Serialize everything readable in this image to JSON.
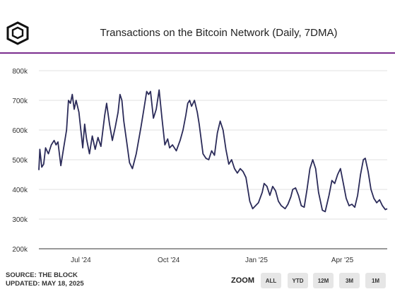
{
  "logo": {
    "icon": "the-block-cube-icon"
  },
  "title": "Transactions on the Bitcoin Network (Daily, 7DMA)",
  "footer": {
    "source": "SOURCE: THE BLOCK",
    "updated": "UPDATED: MAY 18, 2025"
  },
  "zoom": {
    "label": "ZOOM",
    "buttons": [
      "ALL",
      "YTD",
      "12M",
      "3M",
      "1M"
    ]
  },
  "colors": {
    "line": "#2b2b59",
    "accent": "#7b2d8e",
    "button_bg": "#e6e6e6"
  },
  "chart_data": {
    "type": "line",
    "title": "Transactions on the Bitcoin Network (Daily, 7DMA)",
    "xlabel": "",
    "ylabel": "",
    "x_range": [
      "2024-05-18",
      "2025-05-18"
    ],
    "ylim": [
      200000,
      800000
    ],
    "y_ticks": [
      200000,
      300000,
      400000,
      500000,
      600000,
      700000,
      800000
    ],
    "y_tick_labels": [
      "200k",
      "300k",
      "400k",
      "500k",
      "600k",
      "700k",
      "800k"
    ],
    "x_ticks": [
      "2024-07-01",
      "2024-10-01",
      "2025-01-01",
      "2025-04-01"
    ],
    "x_tick_labels": [
      "Jul '24",
      "Oct '24",
      "Jan '25",
      "Apr '25"
    ],
    "grid": "horizontal",
    "legend": "none",
    "series": [
      {
        "name": "",
        "color": "#2b2b59",
        "points": [
          [
            "2024-05-18",
            465000
          ],
          [
            "2024-05-19",
            535000
          ],
          [
            "2024-05-21",
            475000
          ],
          [
            "2024-05-23",
            485000
          ],
          [
            "2024-05-25",
            540000
          ],
          [
            "2024-05-28",
            520000
          ],
          [
            "2024-05-31",
            550000
          ],
          [
            "2024-06-03",
            565000
          ],
          [
            "2024-06-05",
            550000
          ],
          [
            "2024-06-07",
            560000
          ],
          [
            "2024-06-10",
            480000
          ],
          [
            "2024-06-13",
            540000
          ],
          [
            "2024-06-16",
            600000
          ],
          [
            "2024-06-18",
            700000
          ],
          [
            "2024-06-20",
            690000
          ],
          [
            "2024-06-22",
            720000
          ],
          [
            "2024-06-24",
            670000
          ],
          [
            "2024-06-26",
            700000
          ],
          [
            "2024-06-29",
            660000
          ],
          [
            "2024-07-01",
            600000
          ],
          [
            "2024-07-03",
            540000
          ],
          [
            "2024-07-05",
            620000
          ],
          [
            "2024-07-07",
            570000
          ],
          [
            "2024-07-10",
            520000
          ],
          [
            "2024-07-13",
            580000
          ],
          [
            "2024-07-16",
            535000
          ],
          [
            "2024-07-19",
            575000
          ],
          [
            "2024-07-22",
            545000
          ],
          [
            "2024-07-26",
            650000
          ],
          [
            "2024-07-28",
            690000
          ],
          [
            "2024-07-31",
            620000
          ],
          [
            "2024-08-03",
            565000
          ],
          [
            "2024-08-06",
            610000
          ],
          [
            "2024-08-09",
            660000
          ],
          [
            "2024-08-11",
            720000
          ],
          [
            "2024-08-13",
            700000
          ],
          [
            "2024-08-15",
            630000
          ],
          [
            "2024-08-18",
            560000
          ],
          [
            "2024-08-21",
            490000
          ],
          [
            "2024-08-24",
            470000
          ],
          [
            "2024-08-28",
            520000
          ],
          [
            "2024-09-02",
            610000
          ],
          [
            "2024-09-05",
            670000
          ],
          [
            "2024-09-08",
            730000
          ],
          [
            "2024-09-10",
            720000
          ],
          [
            "2024-09-12",
            730000
          ],
          [
            "2024-09-15",
            640000
          ],
          [
            "2024-09-18",
            670000
          ],
          [
            "2024-09-21",
            735000
          ],
          [
            "2024-09-24",
            640000
          ],
          [
            "2024-09-27",
            550000
          ],
          [
            "2024-09-30",
            570000
          ],
          [
            "2024-10-02",
            540000
          ],
          [
            "2024-10-05",
            550000
          ],
          [
            "2024-10-07",
            540000
          ],
          [
            "2024-10-09",
            530000
          ],
          [
            "2024-10-13",
            565000
          ],
          [
            "2024-10-16",
            600000
          ],
          [
            "2024-10-19",
            650000
          ],
          [
            "2024-10-21",
            690000
          ],
          [
            "2024-10-23",
            700000
          ],
          [
            "2024-10-25",
            680000
          ],
          [
            "2024-10-28",
            700000
          ],
          [
            "2024-10-31",
            660000
          ],
          [
            "2024-11-02",
            620000
          ],
          [
            "2024-11-06",
            520000
          ],
          [
            "2024-11-09",
            505000
          ],
          [
            "2024-11-12",
            500000
          ],
          [
            "2024-11-15",
            530000
          ],
          [
            "2024-11-18",
            515000
          ],
          [
            "2024-11-21",
            590000
          ],
          [
            "2024-11-24",
            630000
          ],
          [
            "2024-11-27",
            600000
          ],
          [
            "2024-11-30",
            535000
          ],
          [
            "2024-12-03",
            485000
          ],
          [
            "2024-12-06",
            500000
          ],
          [
            "2024-12-09",
            470000
          ],
          [
            "2024-12-12",
            455000
          ],
          [
            "2024-12-15",
            470000
          ],
          [
            "2024-12-18",
            460000
          ],
          [
            "2024-12-21",
            440000
          ],
          [
            "2024-12-25",
            360000
          ],
          [
            "2024-12-28",
            335000
          ],
          [
            "2024-12-31",
            345000
          ],
          [
            "2025-01-03",
            355000
          ],
          [
            "2025-01-07",
            390000
          ],
          [
            "2025-01-09",
            420000
          ],
          [
            "2025-01-12",
            410000
          ],
          [
            "2025-01-15",
            380000
          ],
          [
            "2025-01-18",
            410000
          ],
          [
            "2025-01-21",
            395000
          ],
          [
            "2025-01-24",
            360000
          ],
          [
            "2025-01-27",
            345000
          ],
          [
            "2025-01-31",
            335000
          ],
          [
            "2025-02-03",
            350000
          ],
          [
            "2025-02-06",
            375000
          ],
          [
            "2025-02-08",
            400000
          ],
          [
            "2025-02-11",
            405000
          ],
          [
            "2025-02-14",
            380000
          ],
          [
            "2025-02-17",
            345000
          ],
          [
            "2025-02-20",
            340000
          ],
          [
            "2025-02-23",
            400000
          ],
          [
            "2025-02-26",
            470000
          ],
          [
            "2025-03-01",
            500000
          ],
          [
            "2025-03-04",
            470000
          ],
          [
            "2025-03-07",
            390000
          ],
          [
            "2025-03-11",
            330000
          ],
          [
            "2025-03-14",
            325000
          ],
          [
            "2025-03-18",
            380000
          ],
          [
            "2025-03-21",
            430000
          ],
          [
            "2025-03-24",
            420000
          ],
          [
            "2025-03-27",
            450000
          ],
          [
            "2025-03-30",
            470000
          ],
          [
            "2025-04-02",
            420000
          ],
          [
            "2025-04-05",
            370000
          ],
          [
            "2025-04-08",
            345000
          ],
          [
            "2025-04-11",
            350000
          ],
          [
            "2025-04-14",
            340000
          ],
          [
            "2025-04-17",
            380000
          ],
          [
            "2025-04-20",
            450000
          ],
          [
            "2025-04-23",
            500000
          ],
          [
            "2025-04-25",
            505000
          ],
          [
            "2025-04-28",
            460000
          ],
          [
            "2025-05-01",
            400000
          ],
          [
            "2025-05-04",
            370000
          ],
          [
            "2025-05-07",
            355000
          ],
          [
            "2025-05-10",
            365000
          ],
          [
            "2025-05-13",
            345000
          ],
          [
            "2025-05-16",
            332000
          ],
          [
            "2025-05-18",
            335000
          ]
        ]
      }
    ]
  }
}
